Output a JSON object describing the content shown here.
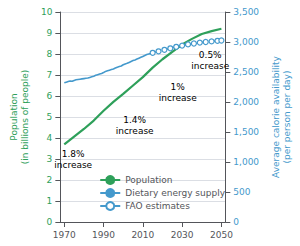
{
  "chart_data": {
    "type": "line",
    "xlim": [
      1968,
      2052
    ],
    "xticks": [
      1970,
      1990,
      2010,
      2030,
      2050
    ],
    "ylim": [
      0,
      10
    ],
    "yticks": [
      0,
      1,
      2,
      3,
      4,
      5,
      6,
      7,
      8,
      9,
      10
    ],
    "y2lim": [
      0,
      3500
    ],
    "y2ticks": [
      0,
      500,
      {
        "value": 1000,
        "label": "1,000"
      },
      {
        "value": 1500,
        "label": "1,500"
      },
      {
        "value": 2000,
        "label": "2,000"
      },
      {
        "value": 2500,
        "label": "2,500"
      },
      {
        "value": 3000,
        "label": "3,000"
      },
      {
        "value": 3500,
        "label": "3,500"
      }
    ],
    "ylabel": "Population\n(in billions of people)",
    "y2label": "Average calorie availability\n(per person per day)",
    "grid": true,
    "legend": "lower right",
    "series": [
      {
        "name": "Population",
        "color": "#2ea05a",
        "line_style": "solid",
        "x": [
          1970,
          1975,
          1980,
          1985,
          1990,
          1995,
          2000,
          2005,
          2010,
          2015,
          2020,
          2025,
          2030,
          2035,
          2040,
          2045,
          2050
        ],
        "values": [
          3.7,
          4.07,
          4.43,
          4.83,
          5.3,
          5.72,
          6.1,
          6.5,
          6.9,
          7.35,
          7.75,
          8.1,
          8.45,
          8.72,
          8.95,
          9.09,
          9.2
        ]
      },
      {
        "name": "Dietary energy supply",
        "color": "#4499cc",
        "axis": "y2",
        "line_style": "solid",
        "x": [
          1970,
          1971,
          1972,
          1973,
          1974,
          1975,
          1976,
          1977,
          1978,
          1979,
          1980,
          1981,
          1982,
          1983,
          1984,
          1985,
          1986,
          1987,
          1988,
          1989,
          1990,
          1991,
          1992,
          1993,
          1994,
          1995,
          1996,
          1997,
          1998,
          1999,
          2000,
          2001,
          2002,
          2003,
          2004,
          2005,
          2006,
          2007,
          2008,
          2009,
          2010,
          2011,
          2012,
          2013,
          2014,
          2015
        ],
        "values": [
          2320,
          2330,
          2340,
          2350,
          2345,
          2360,
          2370,
          2375,
          2380,
          2385,
          2390,
          2395,
          2400,
          2410,
          2420,
          2430,
          2445,
          2455,
          2465,
          2475,
          2490,
          2510,
          2520,
          2530,
          2540,
          2550,
          2565,
          2580,
          2590,
          2600,
          2620,
          2635,
          2645,
          2660,
          2675,
          2690,
          2700,
          2715,
          2730,
          2745,
          2760,
          2775,
          2790,
          2800,
          2810,
          2820
        ]
      },
      {
        "name": "FAO estimates",
        "color": "#4499cc",
        "axis": "y2",
        "line_style": "dashed",
        "marker": "circle",
        "x": [
          2015,
          2018,
          2021,
          2024,
          2027,
          2030,
          2033,
          2036,
          2039,
          2042,
          2045,
          2048,
          2050
        ],
        "values": [
          2820,
          2845,
          2870,
          2895,
          2920,
          2940,
          2960,
          2975,
          2990,
          3000,
          3010,
          3020,
          3025
        ]
      }
    ],
    "annotations": [
      "1.8%\nincrease",
      "1.4%\nincrease",
      "1%\nincrease",
      "0.5%\nincrease"
    ]
  }
}
